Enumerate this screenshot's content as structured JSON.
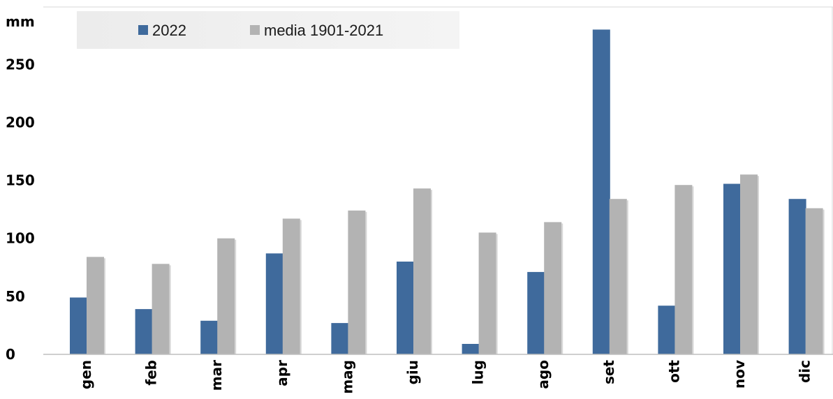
{
  "chart_data": {
    "type": "bar",
    "title": "",
    "ylabel": "mm",
    "xlabel": "",
    "categories": [
      "gen",
      "feb",
      "mar",
      "apr",
      "mag",
      "giu",
      "lug",
      "ago",
      "set",
      "ott",
      "nov",
      "dic"
    ],
    "series": [
      {
        "name": "2022",
        "color": "#3f6a9c",
        "values": [
          49,
          39,
          29,
          87,
          27,
          80,
          9,
          71,
          280,
          42,
          147,
          134
        ]
      },
      {
        "name": "media 1901-2021",
        "color": "#b3b3b3",
        "values": [
          84,
          78,
          100,
          117,
          124,
          143,
          105,
          114,
          134,
          146,
          155,
          126
        ]
      }
    ],
    "yticks": [
      0,
      50,
      100,
      150,
      200,
      250
    ],
    "ylim": [
      0,
      290
    ],
    "grid": false,
    "legend_position": "top-left"
  }
}
